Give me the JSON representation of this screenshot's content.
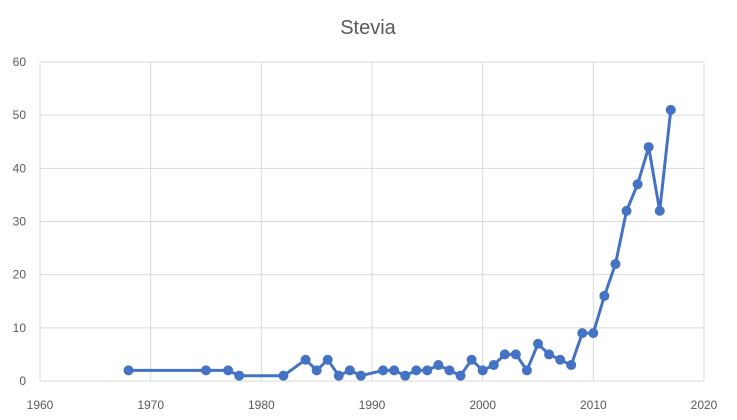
{
  "chart_data": {
    "type": "scatter",
    "title": "Stevia",
    "xlabel": "",
    "ylabel": "",
    "xlim": [
      1960,
      2020
    ],
    "ylim": [
      0,
      60
    ],
    "xticks": [
      1960,
      1970,
      1980,
      1990,
      2000,
      2010,
      2020
    ],
    "yticks": [
      0,
      10,
      20,
      30,
      40,
      50,
      60
    ],
    "grid": true,
    "legend": "none",
    "series": [
      {
        "color": "#4472c4",
        "style": "line-with-markers",
        "x": [
          1968,
          1975,
          1977,
          1978,
          1982,
          1984,
          1985,
          1986,
          1987,
          1988,
          1989,
          1991,
          1992,
          1993,
          1994,
          1995,
          1996,
          1997,
          1998,
          1999,
          2000,
          2001,
          2002,
          2003,
          2004,
          2005,
          2006,
          2007,
          2008,
          2009,
          2010,
          2011,
          2012,
          2013,
          2014,
          2015,
          2016,
          2017
        ],
        "y": [
          2,
          2,
          2,
          1,
          1,
          4,
          2,
          4,
          1,
          2,
          1,
          2,
          2,
          1,
          2,
          2,
          3,
          2,
          1,
          4,
          2,
          3,
          5,
          5,
          2,
          7,
          5,
          4,
          3,
          9,
          9,
          16,
          22,
          32,
          37,
          44,
          32,
          51
        ]
      }
    ]
  }
}
